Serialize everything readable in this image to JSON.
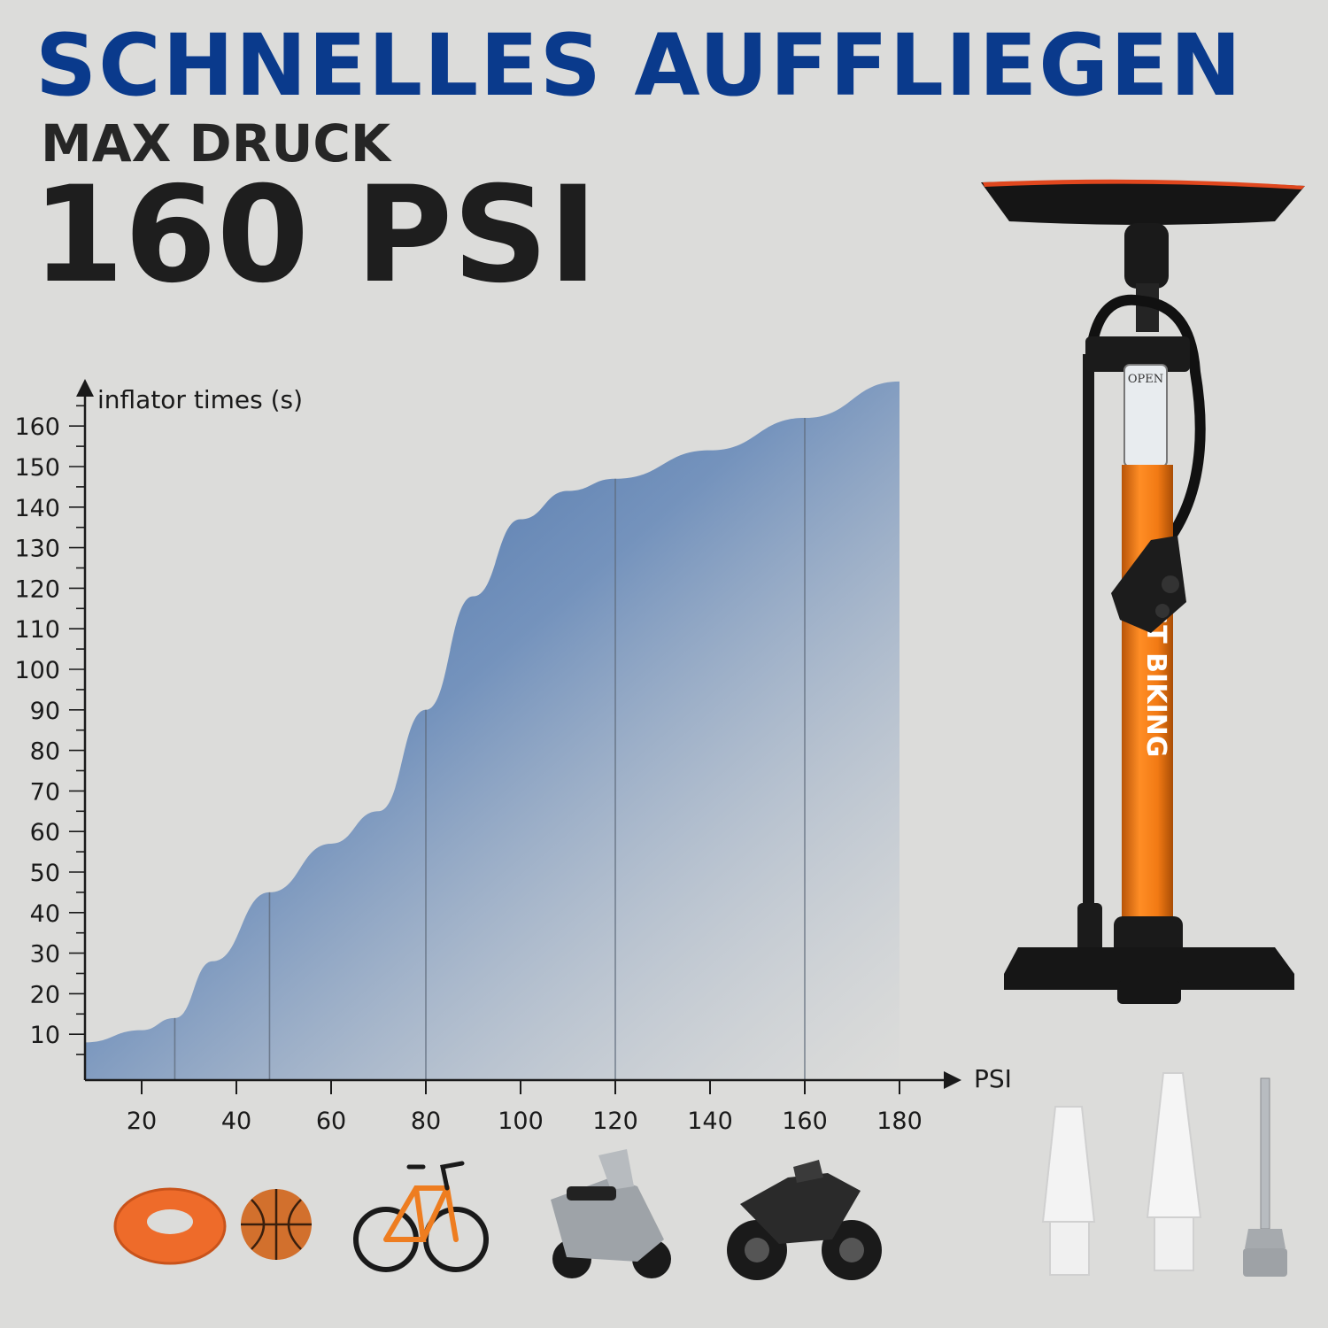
{
  "header": {
    "headline": "SCHNELLES AUFFLIEGEN",
    "subline": "MAX DRUCK",
    "pressure": "160 PSI"
  },
  "colors": {
    "headline_blue": "#0a3a8c",
    "area_blue": "#3d65a0",
    "pump_orange": "#f27a14",
    "background": "#dcdcda"
  },
  "product": {
    "gauge_label": "OPEN",
    "brand_text": "ST BIKING"
  },
  "icons": [
    "swim-ring-icon",
    "basketball-icon",
    "bicycle-icon",
    "scooter-icon",
    "motorcycle-icon",
    "nozzle-adapter-icon",
    "nozzle-adapter-icon",
    "ball-needle-icon"
  ],
  "chart_data": {
    "type": "area",
    "xlabel": "PSI",
    "ylabel": "inflator times (s)",
    "x_ticks": [
      20,
      40,
      60,
      80,
      100,
      120,
      140,
      160,
      180
    ],
    "y_ticks": [
      10,
      20,
      30,
      40,
      50,
      60,
      70,
      80,
      90,
      100,
      110,
      120,
      130,
      140,
      150,
      160
    ],
    "xlim": [
      8,
      180
    ],
    "ylim": [
      0,
      165
    ],
    "grid": "vertical gridlines at selected points",
    "gridlines_x": [
      27,
      47,
      80,
      120,
      160
    ],
    "points": [
      [
        8,
        8
      ],
      [
        20,
        11
      ],
      [
        27,
        14
      ],
      [
        35,
        28
      ],
      [
        47,
        45
      ],
      [
        60,
        57
      ],
      [
        70,
        65
      ],
      [
        80,
        90
      ],
      [
        90,
        118
      ],
      [
        100,
        137
      ],
      [
        110,
        144
      ],
      [
        120,
        147
      ],
      [
        140,
        154
      ],
      [
        160,
        162
      ],
      [
        180,
        171
      ]
    ]
  }
}
